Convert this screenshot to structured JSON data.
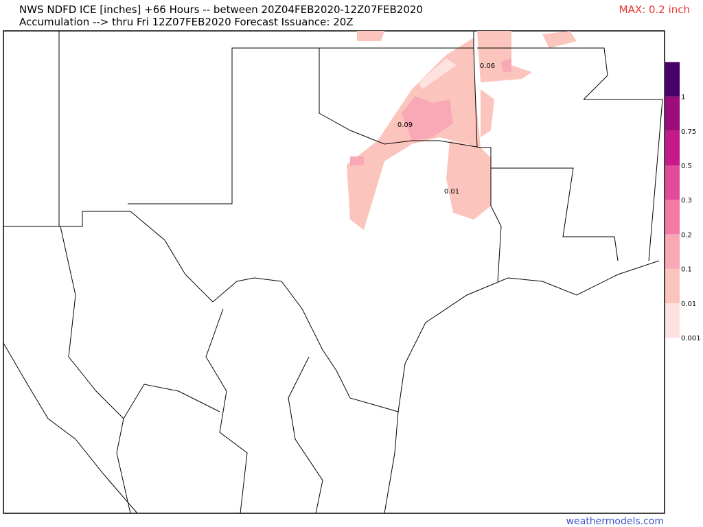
{
  "header": {
    "title": "NWS NDFD ICE [inches] +66 Hours -- between 20Z04FEB2020-12Z07FEB2020",
    "subtitle": "Accumulation --> thru Fri 12Z07FEB2020   Forecast Issuance: 20Z",
    "max": "MAX: 0.2 inch"
  },
  "legend": {
    "levels": [
      {
        "label": "0.001",
        "color": "#fde2e0"
      },
      {
        "label": "0.01",
        "color": "#fbc4bd"
      },
      {
        "label": "0.1",
        "color": "#f9a9b6"
      },
      {
        "label": "0.2",
        "color": "#f47aa6"
      },
      {
        "label": "0.3",
        "color": "#e24b9c"
      },
      {
        "label": "0.5",
        "color": "#c51b8a"
      },
      {
        "label": "0.75",
        "color": "#9c0c7c"
      },
      {
        "label": "1",
        "color": "#49006a"
      }
    ]
  },
  "map": {
    "labels": [
      {
        "text": "0.06"
      },
      {
        "text": "0.09"
      },
      {
        "text": "0.01"
      }
    ]
  },
  "footer": {
    "site": "weathermodels.com"
  }
}
